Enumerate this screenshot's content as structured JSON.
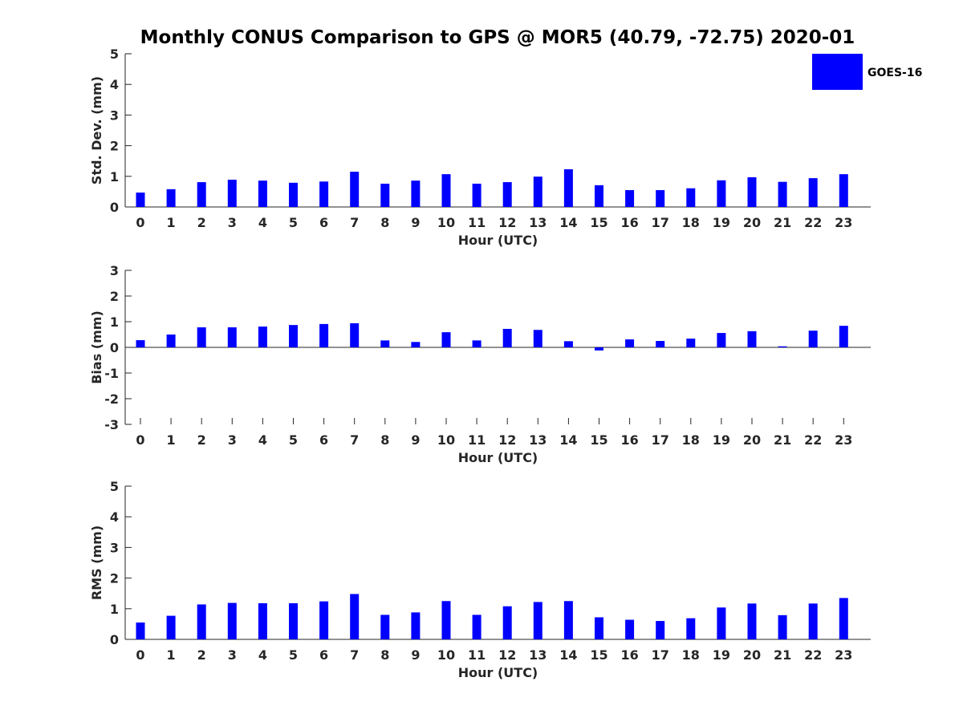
{
  "title": "Monthly CONUS Comparison to GPS @ MOR5 (40.79, -72.75) 2020-01",
  "chart_data": [
    {
      "type": "bar",
      "id": "stddev",
      "title": "Monthly CONUS Comparison to GPS @ MOR5 (40.79, -72.75) 2020-01",
      "xlabel": "Hour (UTC)",
      "ylabel": "Std. Dev. (mm)",
      "ylim": [
        0,
        5
      ],
      "yticks": [
        0,
        1,
        2,
        3,
        4,
        5
      ],
      "categories": [
        "0",
        "1",
        "2",
        "3",
        "4",
        "5",
        "6",
        "7",
        "8",
        "9",
        "10",
        "11",
        "12",
        "13",
        "14",
        "15",
        "16",
        "17",
        "18",
        "19",
        "20",
        "21",
        "22",
        "23"
      ],
      "series": [
        {
          "name": "GOES-16",
          "color": "#0000ff",
          "values": [
            0.47,
            0.58,
            0.81,
            0.89,
            0.86,
            0.79,
            0.83,
            1.15,
            0.76,
            0.86,
            1.07,
            0.76,
            0.81,
            0.99,
            1.23,
            0.71,
            0.55,
            0.55,
            0.61,
            0.87,
            0.97,
            0.82,
            0.94,
            1.07
          ]
        }
      ],
      "legend": {
        "entries": [
          "GOES-16"
        ],
        "location": "top-right"
      }
    },
    {
      "type": "bar",
      "id": "bias",
      "xlabel": "Hour (UTC)",
      "ylabel": "Bias (mm)",
      "ylim": [
        -3,
        3
      ],
      "yticks": [
        -3,
        -2,
        -1,
        0,
        1,
        2,
        3
      ],
      "categories": [
        "0",
        "1",
        "2",
        "3",
        "4",
        "5",
        "6",
        "7",
        "8",
        "9",
        "10",
        "11",
        "12",
        "13",
        "14",
        "15",
        "16",
        "17",
        "18",
        "19",
        "20",
        "21",
        "22",
        "23"
      ],
      "series": [
        {
          "name": "GOES-16",
          "color": "#0000ff",
          "values": [
            0.28,
            0.5,
            0.78,
            0.78,
            0.81,
            0.87,
            0.91,
            0.94,
            0.27,
            0.21,
            0.59,
            0.27,
            0.72,
            0.68,
            0.24,
            -0.12,
            0.31,
            0.25,
            0.34,
            0.56,
            0.63,
            0.04,
            0.65,
            0.84
          ]
        }
      ]
    },
    {
      "type": "bar",
      "id": "rms",
      "xlabel": "Hour (UTC)",
      "ylabel": "RMS (mm)",
      "ylim": [
        0,
        5
      ],
      "yticks": [
        0,
        1,
        2,
        3,
        4,
        5
      ],
      "categories": [
        "0",
        "1",
        "2",
        "3",
        "4",
        "5",
        "6",
        "7",
        "8",
        "9",
        "10",
        "11",
        "12",
        "13",
        "14",
        "15",
        "16",
        "17",
        "18",
        "19",
        "20",
        "21",
        "22",
        "23"
      ],
      "series": [
        {
          "name": "GOES-16",
          "color": "#0000ff",
          "values": [
            0.55,
            0.77,
            1.14,
            1.19,
            1.18,
            1.18,
            1.24,
            1.48,
            0.8,
            0.88,
            1.25,
            0.8,
            1.08,
            1.22,
            1.25,
            0.72,
            0.64,
            0.6,
            0.69,
            1.04,
            1.17,
            0.79,
            1.17,
            1.35
          ]
        }
      ]
    }
  ]
}
